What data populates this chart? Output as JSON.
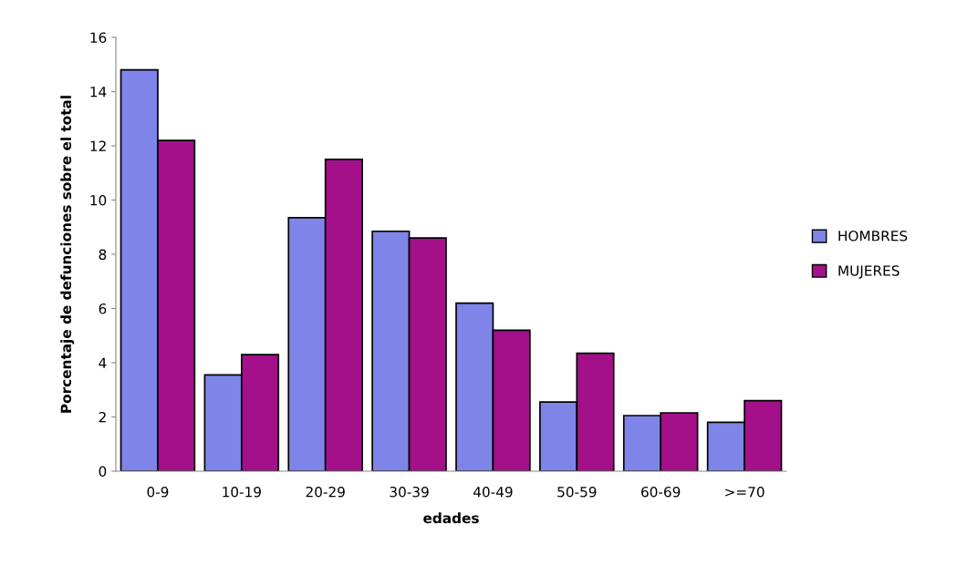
{
  "chart_data": {
    "type": "bar",
    "xlabel": "edades",
    "ylabel": "Porcentaje de defunciones sobre el total",
    "categories": [
      "0-9",
      "10-19",
      "20-29",
      "30-39",
      "40-49",
      "50-59",
      "60-69",
      ">=70"
    ],
    "series": [
      {
        "name": "HOMBRES",
        "color": "#7f84e8",
        "values": [
          14.8,
          3.55,
          9.35,
          8.85,
          6.2,
          2.55,
          2.05,
          1.8
        ]
      },
      {
        "name": "MUJERES",
        "color": "#a3108a",
        "values": [
          12.2,
          4.3,
          11.5,
          8.6,
          5.2,
          4.35,
          2.15,
          2.6
        ]
      }
    ],
    "ylim": [
      0,
      16
    ],
    "yticks": [
      0,
      2,
      4,
      6,
      8,
      10,
      12,
      14,
      16
    ],
    "grid": false,
    "legend": "right"
  }
}
